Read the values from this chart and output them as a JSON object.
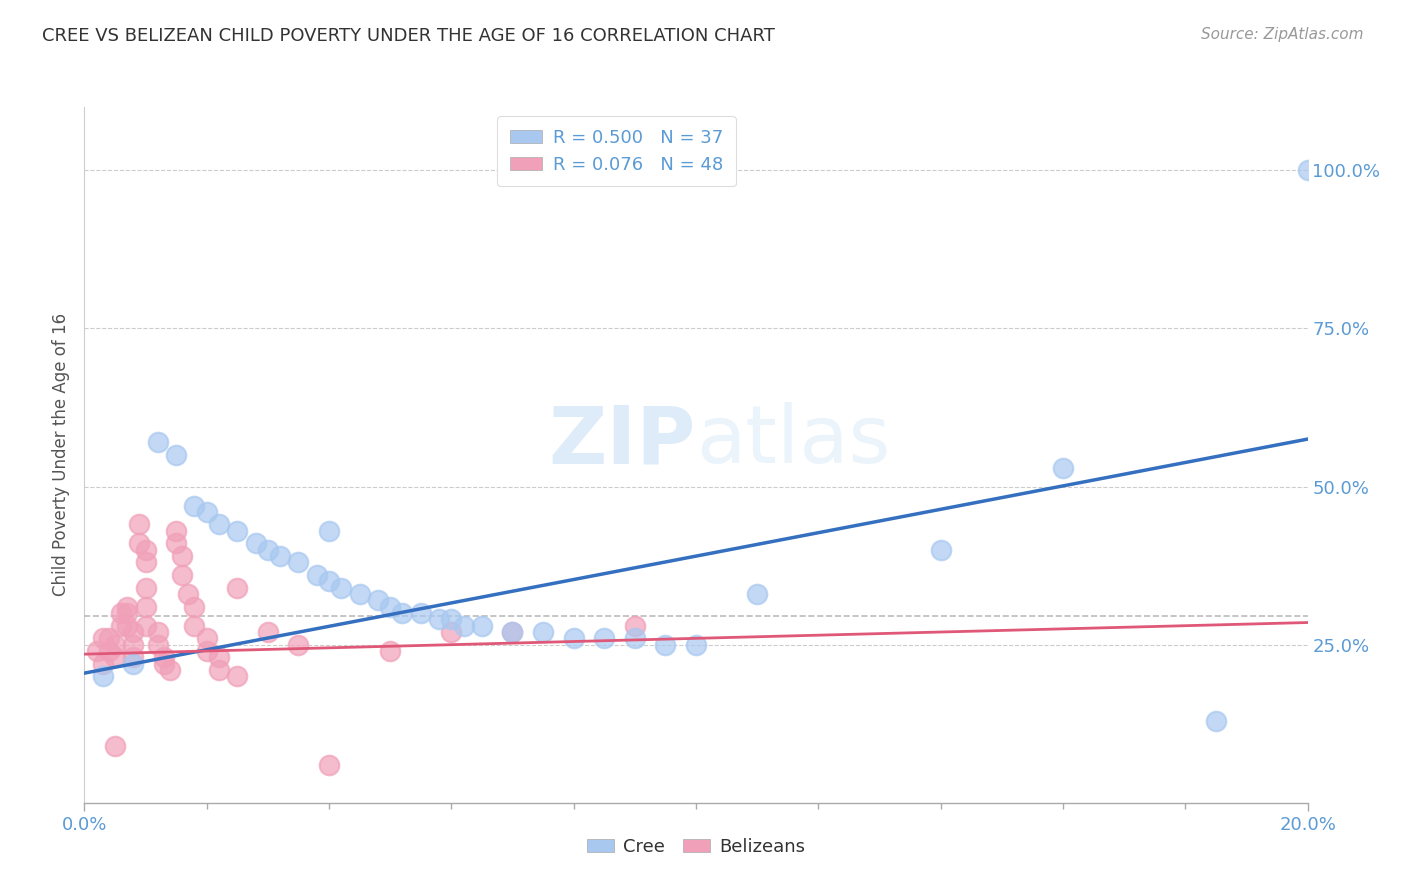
{
  "title": "CREE VS BELIZEAN CHILD POVERTY UNDER THE AGE OF 16 CORRELATION CHART",
  "source": "Source: ZipAtlas.com",
  "ylabel_label": "Child Poverty Under the Age of 16",
  "legend_line1": "R = 0.500   N = 37",
  "legend_line2": "R = 0.076   N = 48",
  "cree_color": "#a8c8f0",
  "belizean_color": "#f0a0b8",
  "cree_line_color": "#3570c0",
  "belizean_line_color": "#e05878",
  "background_color": "#ffffff",
  "watermark_zip": "ZIP",
  "watermark_atlas": "atlas",
  "cree_scatter": [
    [
      0.003,
      0.2
    ],
    [
      0.008,
      0.22
    ],
    [
      0.012,
      0.57
    ],
    [
      0.015,
      0.55
    ],
    [
      0.018,
      0.47
    ],
    [
      0.02,
      0.46
    ],
    [
      0.022,
      0.44
    ],
    [
      0.025,
      0.43
    ],
    [
      0.028,
      0.41
    ],
    [
      0.03,
      0.4
    ],
    [
      0.032,
      0.39
    ],
    [
      0.035,
      0.38
    ],
    [
      0.038,
      0.36
    ],
    [
      0.04,
      0.35
    ],
    [
      0.042,
      0.34
    ],
    [
      0.045,
      0.33
    ],
    [
      0.048,
      0.32
    ],
    [
      0.05,
      0.31
    ],
    [
      0.052,
      0.3
    ],
    [
      0.055,
      0.3
    ],
    [
      0.058,
      0.29
    ],
    [
      0.06,
      0.29
    ],
    [
      0.062,
      0.28
    ],
    [
      0.065,
      0.28
    ],
    [
      0.07,
      0.27
    ],
    [
      0.075,
      0.27
    ],
    [
      0.08,
      0.26
    ],
    [
      0.085,
      0.26
    ],
    [
      0.09,
      0.26
    ],
    [
      0.095,
      0.25
    ],
    [
      0.1,
      0.25
    ],
    [
      0.11,
      0.33
    ],
    [
      0.04,
      0.43
    ],
    [
      0.16,
      0.53
    ],
    [
      0.14,
      0.4
    ],
    [
      0.185,
      0.13
    ],
    [
      0.2,
      1.0
    ]
  ],
  "belizean_scatter": [
    [
      0.002,
      0.24
    ],
    [
      0.003,
      0.22
    ],
    [
      0.003,
      0.26
    ],
    [
      0.004,
      0.26
    ],
    [
      0.004,
      0.24
    ],
    [
      0.005,
      0.23
    ],
    [
      0.005,
      0.25
    ],
    [
      0.006,
      0.3
    ],
    [
      0.006,
      0.28
    ],
    [
      0.007,
      0.31
    ],
    [
      0.007,
      0.3
    ],
    [
      0.007,
      0.28
    ],
    [
      0.008,
      0.27
    ],
    [
      0.008,
      0.25
    ],
    [
      0.008,
      0.23
    ],
    [
      0.009,
      0.44
    ],
    [
      0.009,
      0.41
    ],
    [
      0.01,
      0.4
    ],
    [
      0.01,
      0.38
    ],
    [
      0.01,
      0.34
    ],
    [
      0.01,
      0.31
    ],
    [
      0.01,
      0.28
    ],
    [
      0.012,
      0.27
    ],
    [
      0.012,
      0.25
    ],
    [
      0.013,
      0.23
    ],
    [
      0.013,
      0.22
    ],
    [
      0.014,
      0.21
    ],
    [
      0.015,
      0.43
    ],
    [
      0.015,
      0.41
    ],
    [
      0.016,
      0.39
    ],
    [
      0.016,
      0.36
    ],
    [
      0.017,
      0.33
    ],
    [
      0.018,
      0.31
    ],
    [
      0.018,
      0.28
    ],
    [
      0.02,
      0.26
    ],
    [
      0.02,
      0.24
    ],
    [
      0.022,
      0.23
    ],
    [
      0.022,
      0.21
    ],
    [
      0.025,
      0.2
    ],
    [
      0.03,
      0.27
    ],
    [
      0.035,
      0.25
    ],
    [
      0.04,
      0.06
    ],
    [
      0.05,
      0.24
    ],
    [
      0.06,
      0.27
    ],
    [
      0.07,
      0.27
    ],
    [
      0.09,
      0.28
    ],
    [
      0.005,
      0.09
    ],
    [
      0.025,
      0.34
    ]
  ],
  "cree_reg_line": [
    [
      0.0,
      0.205
    ],
    [
      0.2,
      0.575
    ]
  ],
  "belizean_reg_line": [
    [
      0.0,
      0.235
    ],
    [
      0.2,
      0.285
    ]
  ],
  "dashed_hline_y": 0.295,
  "xmin": 0.0,
  "xmax": 0.2,
  "ymin": 0.0,
  "ymax": 1.1,
  "yticks": [
    0.25,
    0.5,
    0.75,
    1.0
  ],
  "ylabel_color": "#5b9bd5",
  "title_color": "#333333",
  "source_color": "#999999",
  "axis_color": "#5b9bd5",
  "gridline_color": "#cccccc",
  "dashed_color": "#bbbbbb"
}
